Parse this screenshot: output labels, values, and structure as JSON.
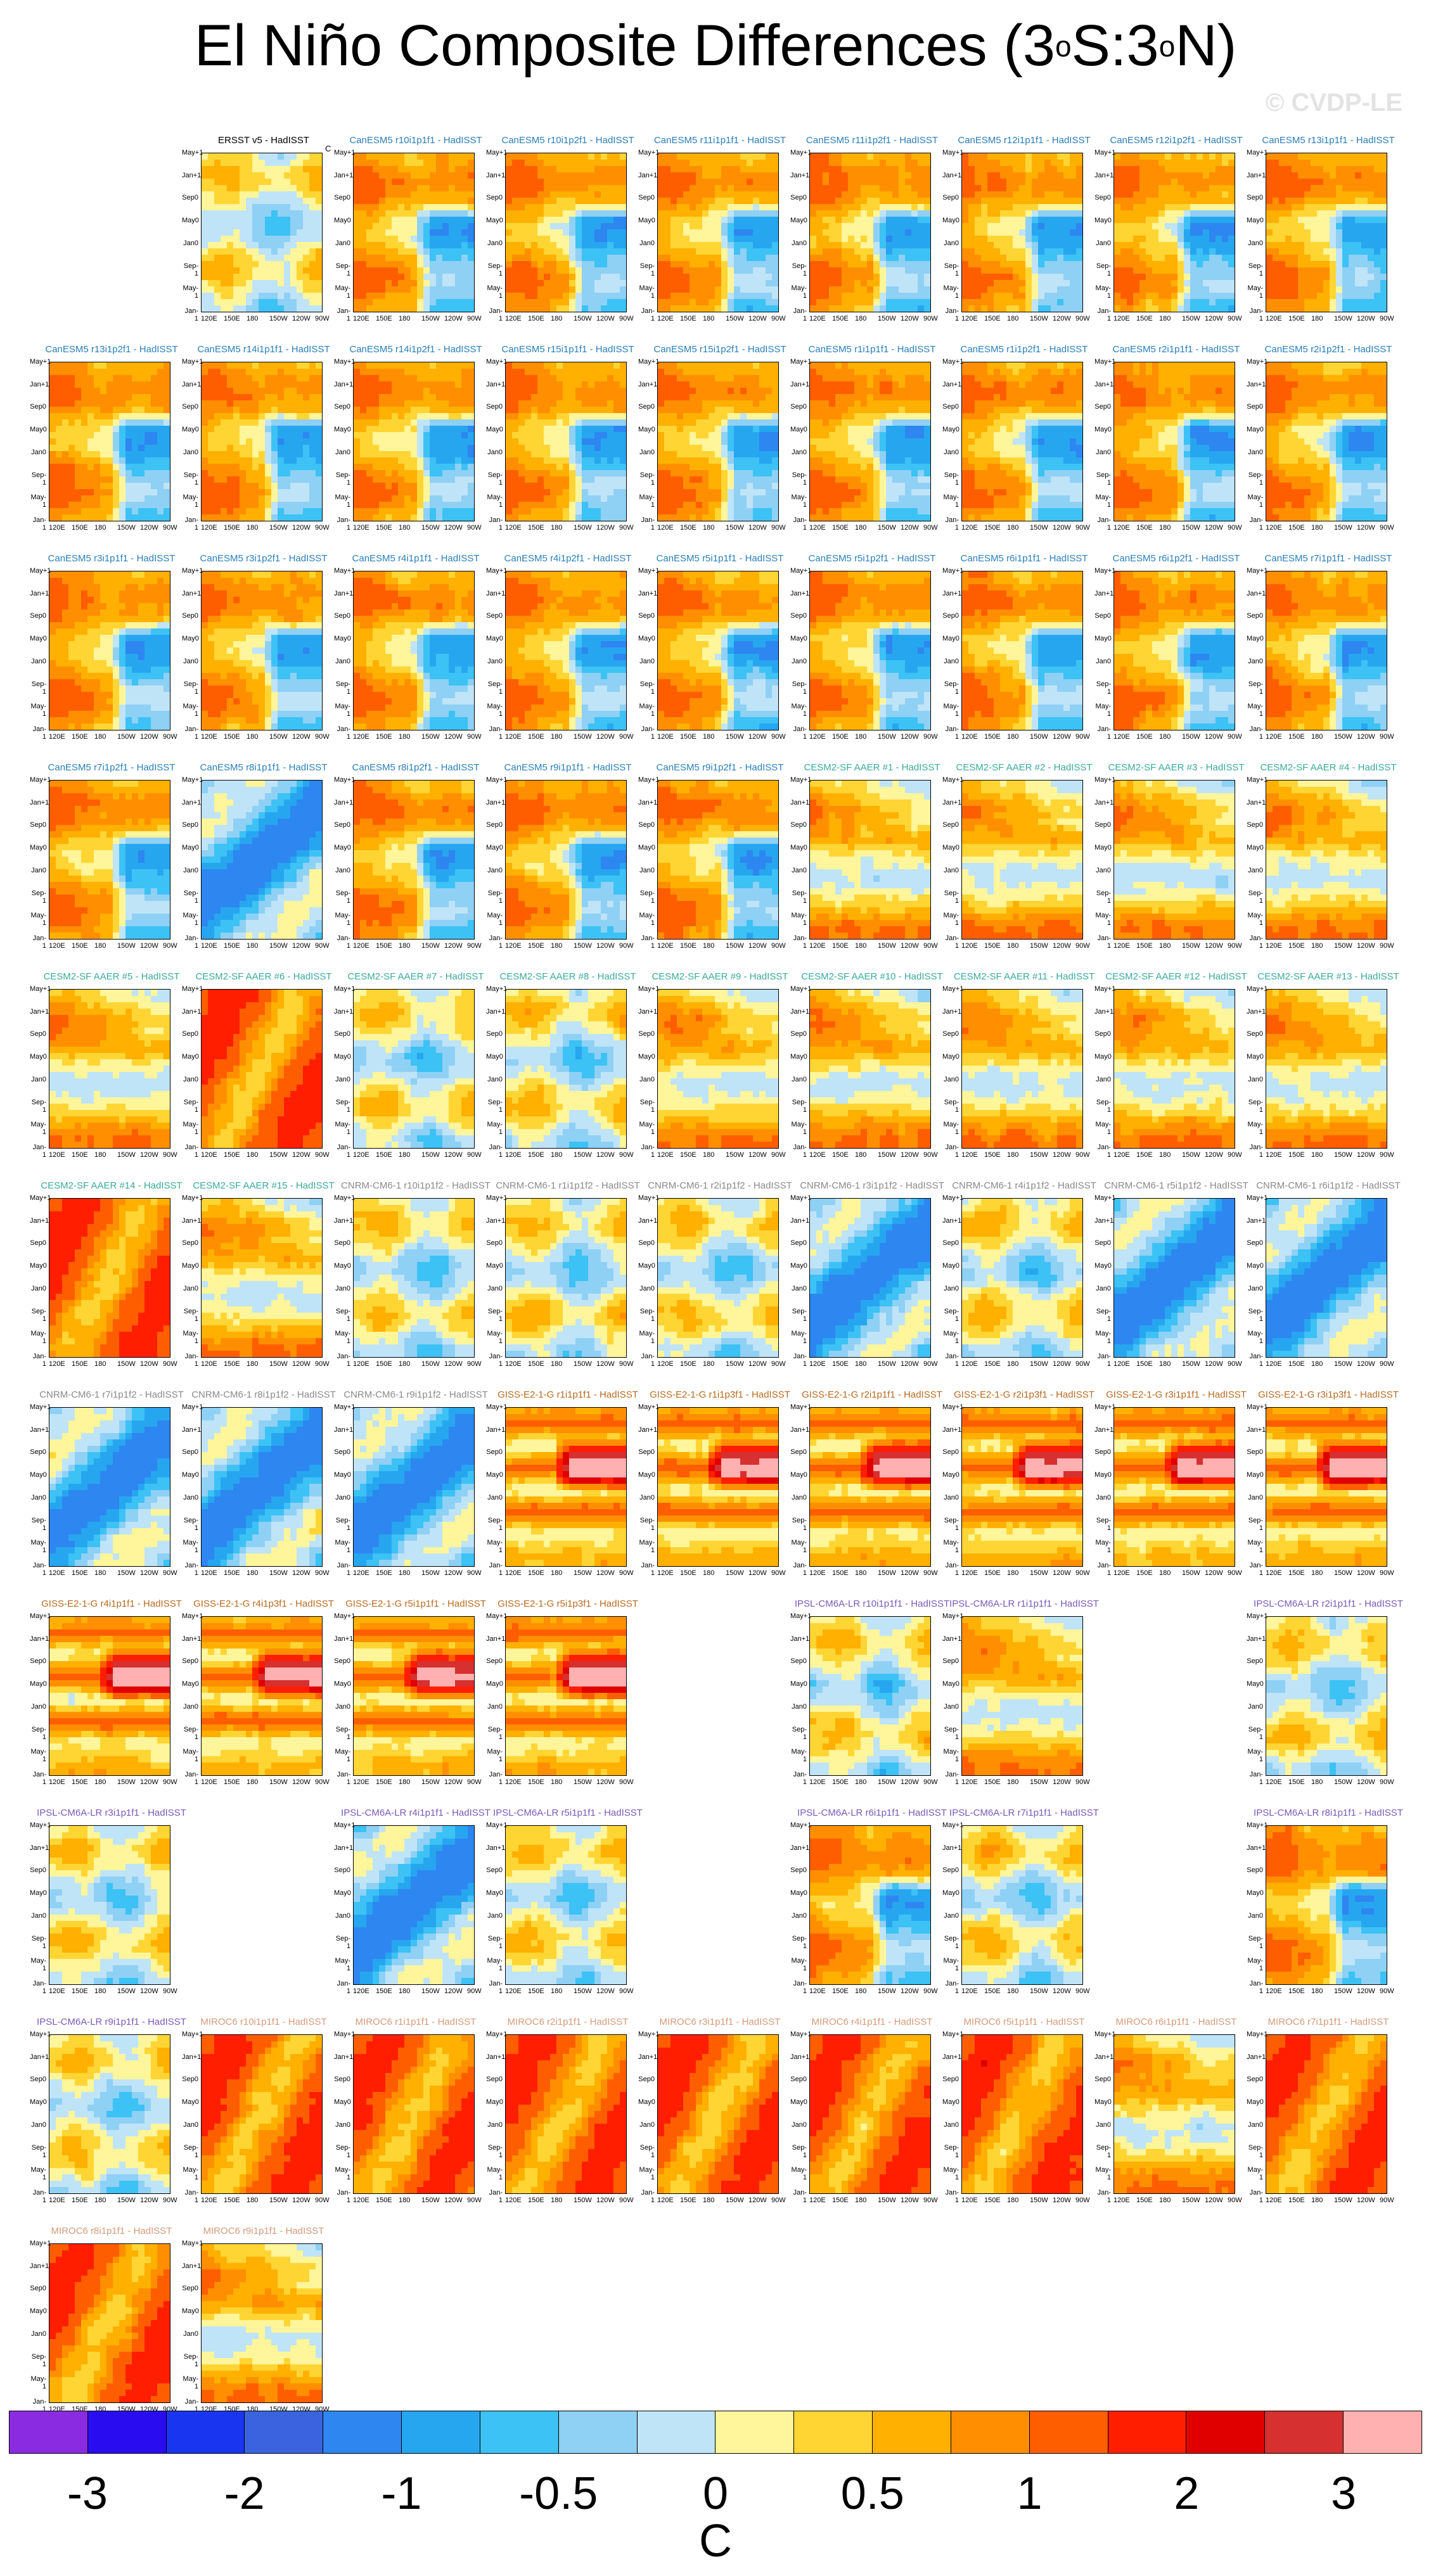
{
  "title": {
    "pre": "El Niño Composite Differences (3",
    "deg1": "o",
    "mid": "S:3",
    "deg2": "o",
    "post": "N)"
  },
  "watermark": "© CVDP-LE",
  "colors": {
    "ensemble": {
      "ERSST": "#000000",
      "CanESM5": "#2a7fb8",
      "CESM2-SF": "#3aaa9a",
      "CNRM": "#8a8a8a",
      "GISS": "#b86a20",
      "IPSL": "#7a5ab8",
      "MIROC6": "#d49a7a"
    }
  },
  "y_tick_labels": [
    "May+1",
    "Jan+1",
    "Sep0",
    "May0",
    "Jan0",
    "Sep-1",
    "May-1",
    "Jan-1"
  ],
  "x_tick_labels": [
    "120E",
    "150E",
    "180",
    "150W",
    "120W",
    "90W"
  ],
  "panel_unit": "C",
  "colorbar": {
    "colors": [
      "#8a2be2",
      "#2a0cf0",
      "#1a35f0",
      "#3b63e0",
      "#2e86f0",
      "#27a6f0",
      "#3cc2f5",
      "#8fd0f5",
      "#bfe4f7",
      "#fff59a",
      "#ffd534",
      "#ffb000",
      "#ff8f00",
      "#ff5e00",
      "#ff1e00",
      "#e00000",
      "#d63030",
      "#ffb0b0"
    ],
    "labels": [
      "-3",
      "-2",
      "-1",
      "-0.5",
      "0",
      "0.5",
      "1",
      "2",
      "3"
    ],
    "unit": "C"
  },
  "chart_data": {
    "type": "heatmap",
    "description_units": "SST composite difference (C)",
    "panels": [
      {
        "title": "ERSST v5 - HadISST",
        "group": "ERSST",
        "pattern": "mixed",
        "seed": 1
      },
      {
        "title": "CanESM5 r10i1p1f1 - HadISST",
        "group": "CanESM5",
        "pattern": "warm_west",
        "seed": 2
      },
      {
        "title": "CanESM5 r10i1p2f1 - HadISST",
        "group": "CanESM5",
        "pattern": "warm_west",
        "seed": 3
      },
      {
        "title": "CanESM5 r11i1p1f1 - HadISST",
        "group": "CanESM5",
        "pattern": "warm_west",
        "seed": 4
      },
      {
        "title": "CanESM5 r11i1p2f1 - HadISST",
        "group": "CanESM5",
        "pattern": "warm_west",
        "seed": 5
      },
      {
        "title": "CanESM5 r12i1p1f1 - HadISST",
        "group": "CanESM5",
        "pattern": "warm_west",
        "seed": 6
      },
      {
        "title": "CanESM5 r12i1p2f1 - HadISST",
        "group": "CanESM5",
        "pattern": "warm_west",
        "seed": 7
      },
      {
        "title": "CanESM5 r13i1p1f1 - HadISST",
        "group": "CanESM5",
        "pattern": "warm_west",
        "seed": 8
      },
      {
        "title": "CanESM5 r13i1p2f1 - HadISST",
        "group": "CanESM5",
        "pattern": "warm_west",
        "seed": 9
      },
      {
        "title": "CanESM5 r14i1p1f1 - HadISST",
        "group": "CanESM5",
        "pattern": "warm_west",
        "seed": 10
      },
      {
        "title": "CanESM5 r14i1p2f1 - HadISST",
        "group": "CanESM5",
        "pattern": "warm_west",
        "seed": 11
      },
      {
        "title": "CanESM5 r15i1p1f1 - HadISST",
        "group": "CanESM5",
        "pattern": "warm_west",
        "seed": 12
      },
      {
        "title": "CanESM5 r15i1p2f1 - HadISST",
        "group": "CanESM5",
        "pattern": "warm_west",
        "seed": 13
      },
      {
        "title": "CanESM5 r1i1p1f1 - HadISST",
        "group": "CanESM5",
        "pattern": "warm_west",
        "seed": 14
      },
      {
        "title": "CanESM5 r1i1p2f1 - HadISST",
        "group": "CanESM5",
        "pattern": "warm_west",
        "seed": 15
      },
      {
        "title": "CanESM5 r2i1p1f1 - HadISST",
        "group": "CanESM5",
        "pattern": "warm_west",
        "seed": 16
      },
      {
        "title": "CanESM5 r2i1p2f1 - HadISST",
        "group": "CanESM5",
        "pattern": "warm_west",
        "seed": 17
      },
      {
        "title": "CanESM5 r3i1p1f1 - HadISST",
        "group": "CanESM5",
        "pattern": "warm_west",
        "seed": 18
      },
      {
        "title": "CanESM5 r3i1p2f1 - HadISST",
        "group": "CanESM5",
        "pattern": "warm_west",
        "seed": 19
      },
      {
        "title": "CanESM5 r4i1p1f1 - HadISST",
        "group": "CanESM5",
        "pattern": "warm_west",
        "seed": 20
      },
      {
        "title": "CanESM5 r4i1p2f1 - HadISST",
        "group": "CanESM5",
        "pattern": "warm_west",
        "seed": 21
      },
      {
        "title": "CanESM5 r5i1p1f1 - HadISST",
        "group": "CanESM5",
        "pattern": "warm_west",
        "seed": 22
      },
      {
        "title": "CanESM5 r5i1p2f1 - HadISST",
        "group": "CanESM5",
        "pattern": "warm_west",
        "seed": 23
      },
      {
        "title": "CanESM5 r6i1p1f1 - HadISST",
        "group": "CanESM5",
        "pattern": "warm_west",
        "seed": 24
      },
      {
        "title": "CanESM5 r6i1p2f1 - HadISST",
        "group": "CanESM5",
        "pattern": "warm_west",
        "seed": 25
      },
      {
        "title": "CanESM5 r7i1p1f1 - HadISST",
        "group": "CanESM5",
        "pattern": "warm_west",
        "seed": 26
      },
      {
        "title": "CanESM5 r7i1p2f1 - HadISST",
        "group": "CanESM5",
        "pattern": "warm_west",
        "seed": 27
      },
      {
        "title": "CanESM5 r8i1p1f1 - HadISST",
        "group": "CanESM5",
        "pattern": "cool",
        "seed": 28
      },
      {
        "title": "CanESM5 r8i1p2f1 - HadISST",
        "group": "CanESM5",
        "pattern": "warm_west",
        "seed": 29
      },
      {
        "title": "CanESM5 r9i1p1f1 - HadISST",
        "group": "CanESM5",
        "pattern": "warm_west",
        "seed": 30
      },
      {
        "title": "CanESM5 r9i1p2f1 - HadISST",
        "group": "CanESM5",
        "pattern": "warm_west",
        "seed": 31
      },
      {
        "title": "CESM2-SF AAER #1 - HadISST",
        "group": "CESM2-SF",
        "pattern": "warm",
        "seed": 32
      },
      {
        "title": "CESM2-SF AAER #2 - HadISST",
        "group": "CESM2-SF",
        "pattern": "warm",
        "seed": 33
      },
      {
        "title": "CESM2-SF AAER #3 - HadISST",
        "group": "CESM2-SF",
        "pattern": "warm",
        "seed": 34
      },
      {
        "title": "CESM2-SF AAER #4 - HadISST",
        "group": "CESM2-SF",
        "pattern": "warm",
        "seed": 35
      },
      {
        "title": "CESM2-SF AAER #5 - HadISST",
        "group": "CESM2-SF",
        "pattern": "warm",
        "seed": 36
      },
      {
        "title": "CESM2-SF AAER #6 - HadISST",
        "group": "CESM2-SF",
        "pattern": "hot",
        "seed": 37
      },
      {
        "title": "CESM2-SF AAER #7 - HadISST",
        "group": "CESM2-SF",
        "pattern": "mixed",
        "seed": 38
      },
      {
        "title": "CESM2-SF AAER #8 - HadISST",
        "group": "CESM2-SF",
        "pattern": "mixed",
        "seed": 39
      },
      {
        "title": "CESM2-SF AAER #9 - HadISST",
        "group": "CESM2-SF",
        "pattern": "warm",
        "seed": 40
      },
      {
        "title": "CESM2-SF AAER #10 - HadISST",
        "group": "CESM2-SF",
        "pattern": "warm",
        "seed": 41
      },
      {
        "title": "CESM2-SF AAER #11 - HadISST",
        "group": "CESM2-SF",
        "pattern": "warm",
        "seed": 42
      },
      {
        "title": "CESM2-SF AAER #12 - HadISST",
        "group": "CESM2-SF",
        "pattern": "warm",
        "seed": 43
      },
      {
        "title": "CESM2-SF AAER #13 - HadISST",
        "group": "CESM2-SF",
        "pattern": "warm",
        "seed": 44
      },
      {
        "title": "CESM2-SF AAER #14 - HadISST",
        "group": "CESM2-SF",
        "pattern": "hot",
        "seed": 45
      },
      {
        "title": "CESM2-SF AAER #15 - HadISST",
        "group": "CESM2-SF",
        "pattern": "warm",
        "seed": 46
      },
      {
        "title": "CNRM-CM6-1 r10i1p1f2 - HadISST",
        "group": "CNRM",
        "pattern": "mixed",
        "seed": 47
      },
      {
        "title": "CNRM-CM6-1 r1i1p1f2 - HadISST",
        "group": "CNRM",
        "pattern": "mixed",
        "seed": 48
      },
      {
        "title": "CNRM-CM6-1 r2i1p1f2 - HadISST",
        "group": "CNRM",
        "pattern": "mixed",
        "seed": 49
      },
      {
        "title": "CNRM-CM6-1 r3i1p1f2 - HadISST",
        "group": "CNRM",
        "pattern": "cool",
        "seed": 50
      },
      {
        "title": "CNRM-CM6-1 r4i1p1f2 - HadISST",
        "group": "CNRM",
        "pattern": "mixed",
        "seed": 51
      },
      {
        "title": "CNRM-CM6-1 r5i1p1f2 - HadISST",
        "group": "CNRM",
        "pattern": "cool",
        "seed": 52
      },
      {
        "title": "CNRM-CM6-1 r6i1p1f2 - HadISST",
        "group": "CNRM",
        "pattern": "cool",
        "seed": 53
      },
      {
        "title": "CNRM-CM6-1 r7i1p1f2 - HadISST",
        "group": "CNRM",
        "pattern": "cool",
        "seed": 54
      },
      {
        "title": "CNRM-CM6-1 r8i1p1f2 - HadISST",
        "group": "CNRM",
        "pattern": "cool",
        "seed": 55
      },
      {
        "title": "CNRM-CM6-1 r9i1p1f2 - HadISST",
        "group": "CNRM",
        "pattern": "cool",
        "seed": 56
      },
      {
        "title": "GISS-E2-1-G r1i1p1f1 - HadISST",
        "group": "GISS",
        "pattern": "giss",
        "seed": 57
      },
      {
        "title": "GISS-E2-1-G r1i1p3f1 - HadISST",
        "group": "GISS",
        "pattern": "giss",
        "seed": 58
      },
      {
        "title": "GISS-E2-1-G r2i1p1f1 - HadISST",
        "group": "GISS",
        "pattern": "giss",
        "seed": 59
      },
      {
        "title": "GISS-E2-1-G r2i1p3f1 - HadISST",
        "group": "GISS",
        "pattern": "giss",
        "seed": 60
      },
      {
        "title": "GISS-E2-1-G r3i1p1f1 - HadISST",
        "group": "GISS",
        "pattern": "giss",
        "seed": 61
      },
      {
        "title": "GISS-E2-1-G r3i1p3f1 - HadISST",
        "group": "GISS",
        "pattern": "giss",
        "seed": 62
      },
      {
        "title": "GISS-E2-1-G r4i1p1f1 - HadISST",
        "group": "GISS",
        "pattern": "giss",
        "seed": 63
      },
      {
        "title": "GISS-E2-1-G r4i1p3f1 - HadISST",
        "group": "GISS",
        "pattern": "giss",
        "seed": 64
      },
      {
        "title": "GISS-E2-1-G r5i1p1f1 - HadISST",
        "group": "GISS",
        "pattern": "giss",
        "seed": 65
      },
      {
        "title": "GISS-E2-1-G r5i1p3f1 - HadISST",
        "group": "GISS",
        "pattern": "giss",
        "seed": 66
      },
      {
        "title": "IPSL-CM6A-LR r10i1p1f1 - HadISST",
        "group": "IPSL",
        "pattern": "mixed",
        "seed": 67
      },
      {
        "title": "IPSL-CM6A-LR r1i1p1f1 - HadISST",
        "group": "IPSL",
        "pattern": "warm",
        "seed": 68
      },
      {
        "title": "IPSL-CM6A-LR r2i1p1f1 - HadISST",
        "group": "IPSL",
        "pattern": "mixed",
        "seed": 69
      },
      {
        "title": "IPSL-CM6A-LR r3i1p1f1 - HadISST",
        "group": "IPSL",
        "pattern": "mixed",
        "seed": 70
      },
      {
        "title": "IPSL-CM6A-LR r4i1p1f1 - HadISST",
        "group": "IPSL",
        "pattern": "cool",
        "seed": 71
      },
      {
        "title": "IPSL-CM6A-LR r5i1p1f1 - HadISST",
        "group": "IPSL",
        "pattern": "mixed",
        "seed": 72
      },
      {
        "title": "IPSL-CM6A-LR r6i1p1f1 - HadISST",
        "group": "IPSL",
        "pattern": "warm_west",
        "seed": 73
      },
      {
        "title": "IPSL-CM6A-LR r7i1p1f1 - HadISST",
        "group": "IPSL",
        "pattern": "mixed",
        "seed": 74
      },
      {
        "title": "IPSL-CM6A-LR r8i1p1f1 - HadISST",
        "group": "IPSL",
        "pattern": "warm_west",
        "seed": 75
      },
      {
        "title": "IPSL-CM6A-LR r9i1p1f1 - HadISST",
        "group": "IPSL",
        "pattern": "mixed",
        "seed": 76
      },
      {
        "title": "MIROC6 r10i1p1f1 - HadISST",
        "group": "MIROC6",
        "pattern": "hot",
        "seed": 77
      },
      {
        "title": "MIROC6 r1i1p1f1 - HadISST",
        "group": "MIROC6",
        "pattern": "hot",
        "seed": 78
      },
      {
        "title": "MIROC6 r2i1p1f1 - HadISST",
        "group": "MIROC6",
        "pattern": "hot",
        "seed": 79
      },
      {
        "title": "MIROC6 r3i1p1f1 - HadISST",
        "group": "MIROC6",
        "pattern": "hot",
        "seed": 80
      },
      {
        "title": "MIROC6 r4i1p1f1 - HadISST",
        "group": "MIROC6",
        "pattern": "hot",
        "seed": 81
      },
      {
        "title": "MIROC6 r5i1p1f1 - HadISST",
        "group": "MIROC6",
        "pattern": "hot",
        "seed": 82
      },
      {
        "title": "MIROC6 r6i1p1f1 - HadISST",
        "group": "MIROC6",
        "pattern": "warm",
        "seed": 83
      },
      {
        "title": "MIROC6 r7i1p1f1 - HadISST",
        "group": "MIROC6",
        "pattern": "hot",
        "seed": 84
      },
      {
        "title": "MIROC6 r8i1p1f1 - HadISST",
        "group": "MIROC6",
        "pattern": "hot",
        "seed": 85
      },
      {
        "title": "MIROC6 r9i1p1f1 - HadISST",
        "group": "MIROC6",
        "pattern": "warm",
        "seed": 86
      }
    ]
  }
}
